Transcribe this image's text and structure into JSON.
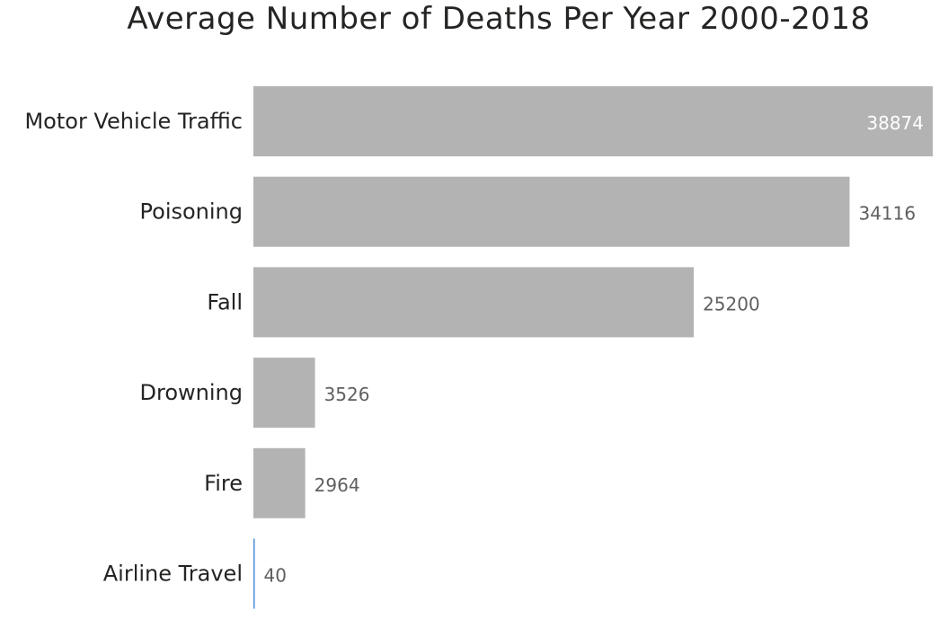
{
  "colors": {
    "bar": "#b3b3b3",
    "highlight": "#4a90d9",
    "label_outside": "#5f5f5f",
    "label_inside": "#ffffff"
  },
  "chart_data": {
    "type": "bar",
    "orientation": "horizontal",
    "title": "Average Number of Deaths Per Year 2000-2018",
    "xlabel": "",
    "ylabel": "",
    "categories": [
      "Motor Vehicle Traffic",
      "Poisoning",
      "Fall",
      "Drowning",
      "Fire",
      "Airline Travel"
    ],
    "values": [
      38874,
      34116,
      25200,
      3526,
      2964,
      40
    ],
    "value_labels": [
      "38874",
      "34116",
      "25200",
      "3526",
      "2964",
      "40"
    ],
    "xlim": [
      0,
      38874
    ],
    "grid": false,
    "legend": "none"
  }
}
